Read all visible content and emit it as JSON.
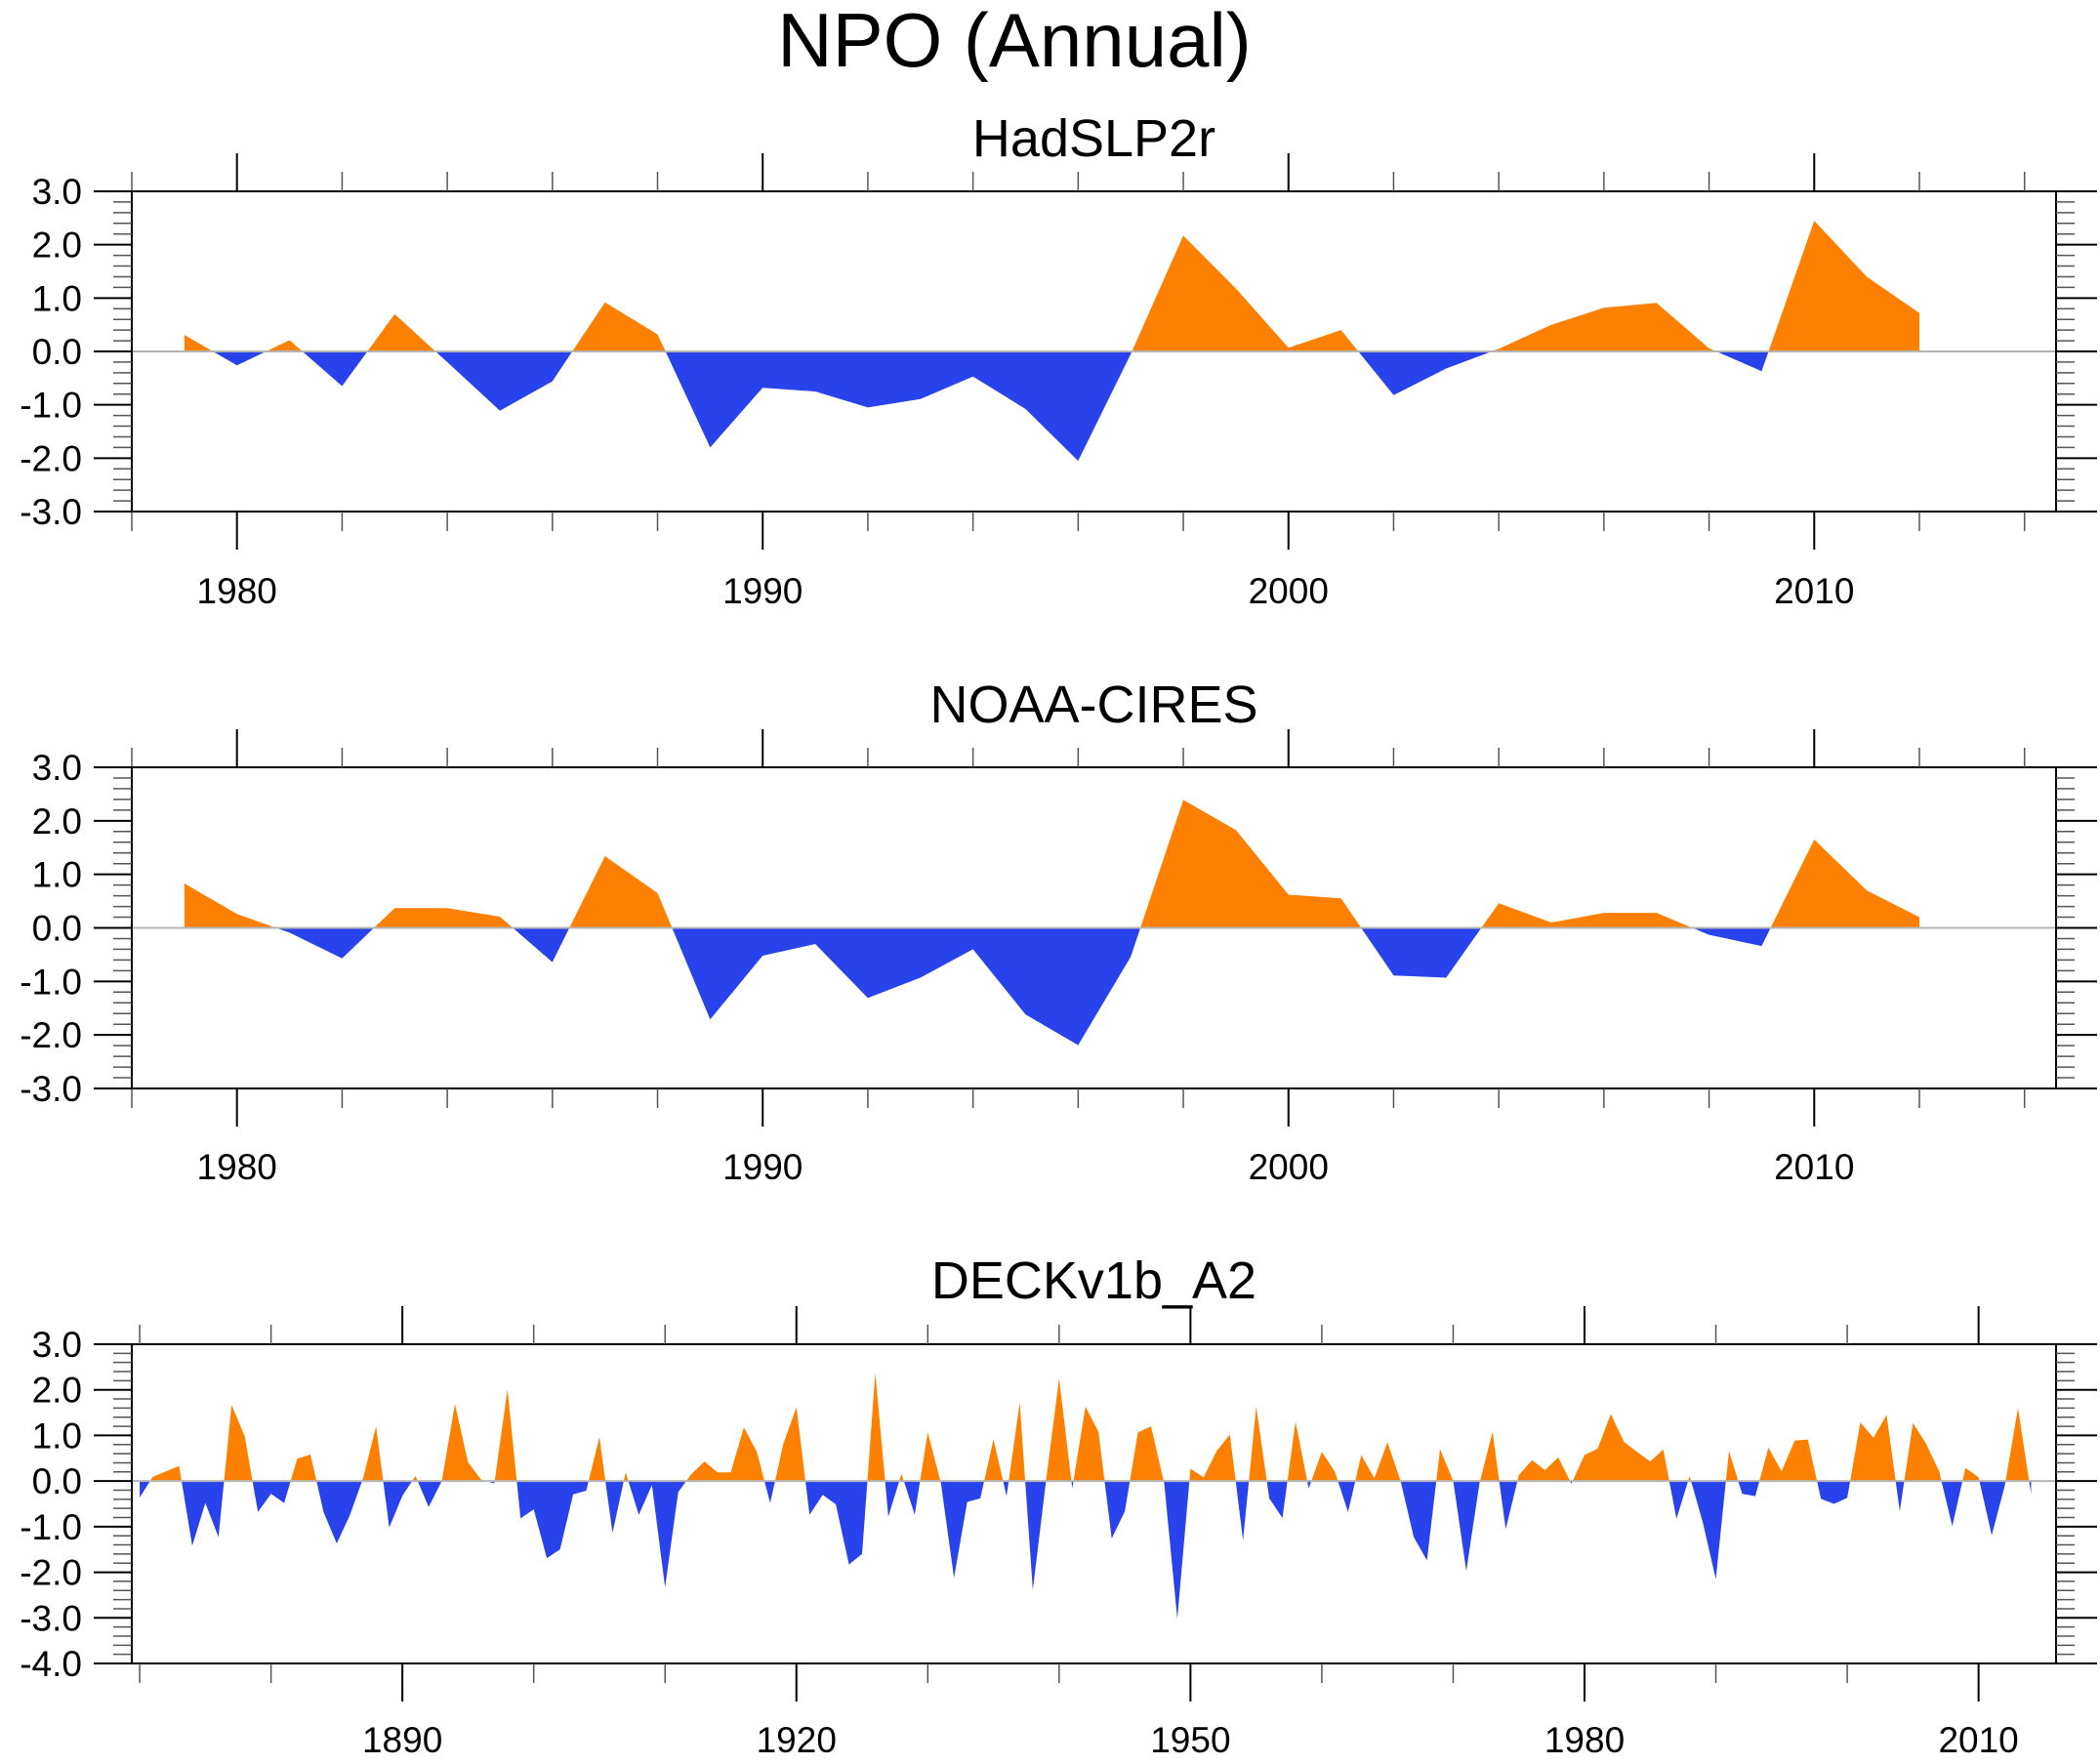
{
  "figure_title": "NPO (Annual)",
  "colors": {
    "positive": "#fe8000",
    "negative": "#2843eb",
    "zero_line": "#b5b5b5",
    "axes": "#000000"
  },
  "chart_data": [
    {
      "type": "area",
      "title": "HadSLP2r",
      "xlabel": "",
      "ylabel": "",
      "fill_above_zero": "orange",
      "fill_below_zero": "blue",
      "xlim": [
        1978.0,
        2014.6
      ],
      "ylim": [
        -3.0,
        3.0
      ],
      "x_major_ticks": [
        1980,
        1990,
        2000,
        2010
      ],
      "x_tick_labels": [
        "1980",
        "1990",
        "2000",
        "2010"
      ],
      "x_minor_step": 2,
      "y_major_ticks": [
        3.0,
        2.0,
        1.0,
        0.0,
        -1.0,
        -2.0,
        -3.0
      ],
      "y_tick_labels": [
        "3.0",
        "2.0",
        "1.0",
        "0.0",
        "-1.0",
        "-2.0",
        "-3.0"
      ],
      "y_minor_step": 0.2,
      "grid": false,
      "legend": "none",
      "x": [
        1979,
        1980,
        1981,
        1982,
        1983,
        1984,
        1985,
        1986,
        1987,
        1988,
        1989,
        1990,
        1991,
        1992,
        1993,
        1994,
        1995,
        1996,
        1997,
        1998,
        1999,
        2000,
        2001,
        2002,
        2003,
        2004,
        2005,
        2006,
        2007,
        2008,
        2009,
        2010,
        2011,
        2012
      ],
      "values": [
        0.31,
        -0.26,
        0.21,
        -0.65,
        0.7,
        -0.2,
        -1.11,
        -0.56,
        0.92,
        0.32,
        -1.8,
        -0.68,
        -0.75,
        -1.05,
        -0.89,
        -0.47,
        -1.08,
        -2.05,
        -0.05,
        2.17,
        1.18,
        0.07,
        0.4,
        -0.82,
        -0.32,
        0.05,
        0.5,
        0.82,
        0.91,
        0.06,
        -0.37,
        2.45,
        1.4,
        0.72
      ]
    },
    {
      "type": "area",
      "title": "NOAA-CIRES",
      "xlabel": "",
      "ylabel": "",
      "fill_above_zero": "orange",
      "fill_below_zero": "blue",
      "xlim": [
        1978.0,
        2014.6
      ],
      "ylim": [
        -3.0,
        3.0
      ],
      "x_major_ticks": [
        1980,
        1990,
        2000,
        2010
      ],
      "x_tick_labels": [
        "1980",
        "1990",
        "2000",
        "2010"
      ],
      "x_minor_step": 2,
      "y_major_ticks": [
        3.0,
        2.0,
        1.0,
        0.0,
        -1.0,
        -2.0,
        -3.0
      ],
      "y_tick_labels": [
        "3.0",
        "2.0",
        "1.0",
        "0.0",
        "-1.0",
        "-2.0",
        "-3.0"
      ],
      "y_minor_step": 0.2,
      "grid": false,
      "legend": "none",
      "x": [
        1979,
        1980,
        1981,
        1982,
        1983,
        1984,
        1985,
        1986,
        1987,
        1988,
        1989,
        1990,
        1991,
        1992,
        1993,
        1994,
        1995,
        1996,
        1997,
        1998,
        1999,
        2000,
        2001,
        2002,
        2003,
        2004,
        2005,
        2006,
        2007,
        2008,
        2009,
        2010,
        2011,
        2012
      ],
      "values": [
        0.83,
        0.26,
        -0.09,
        -0.57,
        0.37,
        0.37,
        0.21,
        -0.64,
        1.34,
        0.65,
        -1.71,
        -0.52,
        -0.3,
        -1.31,
        -0.93,
        -0.4,
        -1.62,
        -2.19,
        -0.54,
        2.39,
        1.83,
        0.62,
        0.55,
        -0.89,
        -0.93,
        0.46,
        0.1,
        0.28,
        0.28,
        -0.13,
        -0.34,
        1.65,
        0.7,
        0.2
      ]
    },
    {
      "type": "area",
      "title": "DECKv1b_A2",
      "xlabel": "",
      "ylabel": "",
      "fill_above_zero": "orange",
      "fill_below_zero": "blue",
      "xlim": [
        1869.4,
        2015.9
      ],
      "ylim": [
        -4.0,
        3.0
      ],
      "x_major_ticks": [
        1890,
        1920,
        1950,
        1980,
        2010
      ],
      "x_tick_labels": [
        "1890",
        "1920",
        "1950",
        "1980",
        "2010"
      ],
      "x_minor_step": 10,
      "y_major_ticks": [
        3.0,
        2.0,
        1.0,
        0.0,
        -1.0,
        -2.0,
        -3.0,
        -4.0
      ],
      "y_tick_labels": [
        "3.0",
        "2.0",
        "1.0",
        "0.0",
        "-1.0",
        "-2.0",
        "-3.0",
        "-4.0"
      ],
      "y_minor_step": 0.2,
      "grid": false,
      "legend": "none",
      "x_start": 1870,
      "values": [
        -0.36,
        0.09,
        0.21,
        0.33,
        -1.42,
        -0.48,
        -1.23,
        1.67,
        0.98,
        -0.68,
        -0.28,
        -0.48,
        0.49,
        0.58,
        -0.68,
        -1.37,
        -0.75,
        0.05,
        1.2,
        -1.02,
        -0.32,
        0.11,
        -0.57,
        0.0,
        1.69,
        0.41,
        0.03,
        -0.05,
        2.01,
        -0.82,
        -0.62,
        -1.69,
        -1.5,
        -0.29,
        -0.21,
        0.96,
        -1.14,
        0.19,
        -0.74,
        -0.09,
        -2.33,
        -0.24,
        0.15,
        0.43,
        0.19,
        0.19,
        1.18,
        0.63,
        -0.48,
        0.81,
        1.62,
        -0.74,
        -0.3,
        -0.51,
        -1.83,
        -1.6,
        2.37,
        -0.78,
        0.16,
        -0.74,
        1.07,
        -0.05,
        -2.12,
        -0.46,
        -0.38,
        0.91,
        -0.33,
        1.72,
        -2.39,
        0.0,
        2.25,
        -0.16,
        1.63,
        1.08,
        -1.26,
        -0.67,
        1.07,
        1.2,
        -0.05,
        -3.02,
        0.27,
        0.08,
        0.66,
        1.02,
        -1.3,
        1.63,
        -0.38,
        -0.81,
        1.3,
        -0.16,
        0.64,
        0.2,
        -0.68,
        0.57,
        0.06,
        0.85,
        0.0,
        -1.23,
        -1.74,
        0.7,
        0.0,
        -1.97,
        -0.05,
        1.08,
        -1.05,
        0.13,
        0.46,
        0.24,
        0.52,
        -0.06,
        0.57,
        0.71,
        1.47,
        0.86,
        0.64,
        0.43,
        0.69,
        -0.83,
        0.11,
        -0.9,
        -2.15,
        0.66,
        -0.28,
        -0.33,
        0.73,
        0.21,
        0.89,
        0.91,
        -0.39,
        -0.5,
        -0.37,
        1.28,
        0.95,
        1.45,
        -0.66,
        1.27,
        0.82,
        0.21,
        -0.99,
        0.29,
        0.08,
        -1.19,
        -0.1,
        1.6,
        -0.28
      ]
    }
  ]
}
